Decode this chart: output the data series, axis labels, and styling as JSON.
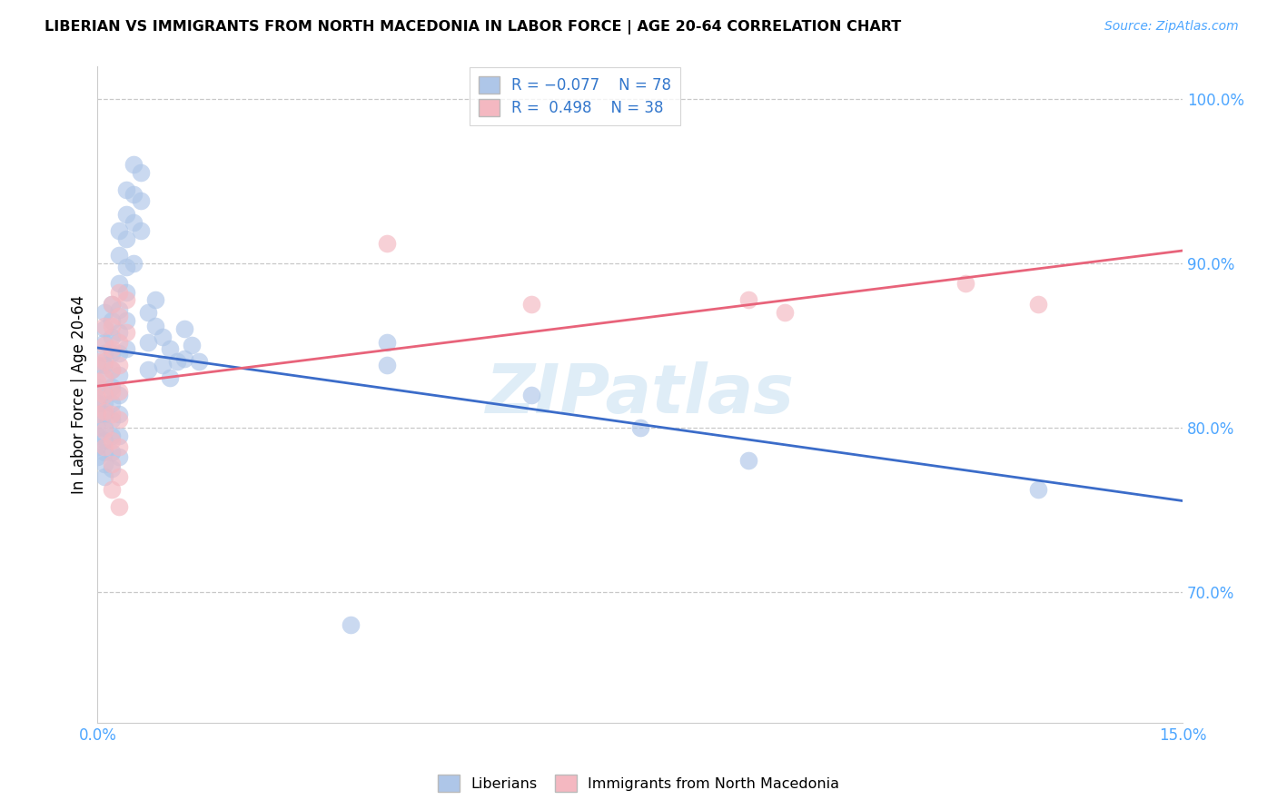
{
  "title": "LIBERIAN VS IMMIGRANTS FROM NORTH MACEDONIA IN LABOR FORCE | AGE 20-64 CORRELATION CHART",
  "source": "Source: ZipAtlas.com",
  "ylabel": "In Labor Force | Age 20-64",
  "xlim": [
    0.0,
    0.15
  ],
  "ylim": [
    0.62,
    1.02
  ],
  "yticks": [
    0.7,
    0.8,
    0.9,
    1.0
  ],
  "yticklabels": [
    "70.0%",
    "80.0%",
    "90.0%",
    "100.0%"
  ],
  "watermark": "ZIPatlas",
  "blue_color": "#aec6e8",
  "pink_color": "#f4b8c1",
  "blue_line_color": "#3b6cc9",
  "pink_line_color": "#e8637a",
  "grid_color": "#c8c8c8",
  "blue_scatter": [
    [
      0.0,
      0.838
    ],
    [
      0.0,
      0.825
    ],
    [
      0.0,
      0.815
    ],
    [
      0.0,
      0.808
    ],
    [
      0.0,
      0.8
    ],
    [
      0.0,
      0.795
    ],
    [
      0.0,
      0.788
    ],
    [
      0.0,
      0.782
    ],
    [
      0.001,
      0.87
    ],
    [
      0.001,
      0.86
    ],
    [
      0.001,
      0.852
    ],
    [
      0.001,
      0.845
    ],
    [
      0.001,
      0.838
    ],
    [
      0.001,
      0.83
    ],
    [
      0.001,
      0.822
    ],
    [
      0.001,
      0.815
    ],
    [
      0.001,
      0.808
    ],
    [
      0.001,
      0.8
    ],
    [
      0.001,
      0.792
    ],
    [
      0.001,
      0.785
    ],
    [
      0.001,
      0.778
    ],
    [
      0.001,
      0.77
    ],
    [
      0.002,
      0.875
    ],
    [
      0.002,
      0.865
    ],
    [
      0.002,
      0.855
    ],
    [
      0.002,
      0.845
    ],
    [
      0.002,
      0.835
    ],
    [
      0.002,
      0.825
    ],
    [
      0.002,
      0.815
    ],
    [
      0.002,
      0.805
    ],
    [
      0.002,
      0.795
    ],
    [
      0.002,
      0.785
    ],
    [
      0.002,
      0.775
    ],
    [
      0.003,
      0.92
    ],
    [
      0.003,
      0.905
    ],
    [
      0.003,
      0.888
    ],
    [
      0.003,
      0.872
    ],
    [
      0.003,
      0.858
    ],
    [
      0.003,
      0.845
    ],
    [
      0.003,
      0.832
    ],
    [
      0.003,
      0.82
    ],
    [
      0.003,
      0.808
    ],
    [
      0.003,
      0.795
    ],
    [
      0.003,
      0.782
    ],
    [
      0.004,
      0.945
    ],
    [
      0.004,
      0.93
    ],
    [
      0.004,
      0.915
    ],
    [
      0.004,
      0.898
    ],
    [
      0.004,
      0.882
    ],
    [
      0.004,
      0.865
    ],
    [
      0.004,
      0.848
    ],
    [
      0.005,
      0.96
    ],
    [
      0.005,
      0.942
    ],
    [
      0.005,
      0.925
    ],
    [
      0.005,
      0.9
    ],
    [
      0.006,
      0.955
    ],
    [
      0.006,
      0.938
    ],
    [
      0.006,
      0.92
    ],
    [
      0.007,
      0.87
    ],
    [
      0.007,
      0.852
    ],
    [
      0.007,
      0.835
    ],
    [
      0.008,
      0.878
    ],
    [
      0.008,
      0.862
    ],
    [
      0.009,
      0.855
    ],
    [
      0.009,
      0.838
    ],
    [
      0.01,
      0.848
    ],
    [
      0.01,
      0.83
    ],
    [
      0.011,
      0.84
    ],
    [
      0.012,
      0.86
    ],
    [
      0.012,
      0.842
    ],
    [
      0.013,
      0.85
    ],
    [
      0.014,
      0.84
    ],
    [
      0.04,
      0.852
    ],
    [
      0.04,
      0.838
    ],
    [
      0.06,
      0.82
    ],
    [
      0.075,
      0.8
    ],
    [
      0.09,
      0.78
    ],
    [
      0.13,
      0.762
    ],
    [
      0.035,
      0.68
    ]
  ],
  "pink_scatter": [
    [
      0.0,
      0.84
    ],
    [
      0.0,
      0.828
    ],
    [
      0.0,
      0.818
    ],
    [
      0.0,
      0.808
    ],
    [
      0.001,
      0.862
    ],
    [
      0.001,
      0.85
    ],
    [
      0.001,
      0.84
    ],
    [
      0.001,
      0.83
    ],
    [
      0.001,
      0.82
    ],
    [
      0.001,
      0.81
    ],
    [
      0.001,
      0.798
    ],
    [
      0.001,
      0.788
    ],
    [
      0.002,
      0.875
    ],
    [
      0.002,
      0.862
    ],
    [
      0.002,
      0.848
    ],
    [
      0.002,
      0.835
    ],
    [
      0.002,
      0.822
    ],
    [
      0.002,
      0.808
    ],
    [
      0.002,
      0.792
    ],
    [
      0.002,
      0.778
    ],
    [
      0.002,
      0.762
    ],
    [
      0.003,
      0.882
    ],
    [
      0.003,
      0.868
    ],
    [
      0.003,
      0.852
    ],
    [
      0.003,
      0.838
    ],
    [
      0.003,
      0.822
    ],
    [
      0.003,
      0.805
    ],
    [
      0.003,
      0.788
    ],
    [
      0.003,
      0.77
    ],
    [
      0.003,
      0.752
    ],
    [
      0.004,
      0.878
    ],
    [
      0.004,
      0.858
    ],
    [
      0.04,
      0.912
    ],
    [
      0.06,
      0.875
    ],
    [
      0.09,
      0.878
    ],
    [
      0.095,
      0.87
    ],
    [
      0.12,
      0.888
    ],
    [
      0.13,
      0.875
    ]
  ]
}
